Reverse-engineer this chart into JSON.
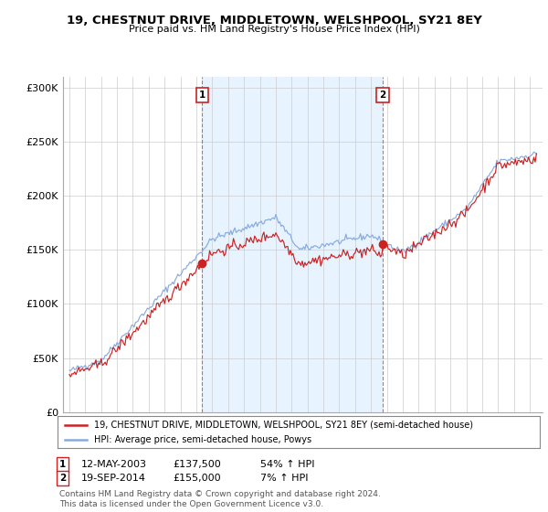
{
  "title": "19, CHESTNUT DRIVE, MIDDLETOWN, WELSHPOOL, SY21 8EY",
  "subtitle": "Price paid vs. HM Land Registry's House Price Index (HPI)",
  "ylabel_ticks": [
    "£0",
    "£50K",
    "£100K",
    "£150K",
    "£200K",
    "£250K",
    "£300K"
  ],
  "ytick_vals": [
    0,
    50000,
    100000,
    150000,
    200000,
    250000,
    300000
  ],
  "ylim": [
    0,
    310000
  ],
  "xlim_start": 1994.6,
  "xlim_end": 2024.8,
  "red_color": "#cc2222",
  "blue_color": "#88aadd",
  "shade_color": "#ddeeff",
  "legend_label_red": "19, CHESTNUT DRIVE, MIDDLETOWN, WELSHPOOL, SY21 8EY (semi-detached house)",
  "legend_label_blue": "HPI: Average price, semi-detached house, Powys",
  "purchase1_date": 2003.37,
  "purchase1_price": 137500,
  "purchase1_label": "1",
  "purchase1_text": "12-MAY-2003",
  "purchase1_amount": "£137,500",
  "purchase1_pct": "54% ↑ HPI",
  "purchase2_date": 2014.72,
  "purchase2_price": 155000,
  "purchase2_label": "2",
  "purchase2_text": "19-SEP-2014",
  "purchase2_amount": "£155,000",
  "purchase2_pct": "7% ↑ HPI",
  "footer": "Contains HM Land Registry data © Crown copyright and database right 2024.\nThis data is licensed under the Open Government Licence v3.0.",
  "background_color": "#ffffff",
  "grid_color": "#cccccc"
}
